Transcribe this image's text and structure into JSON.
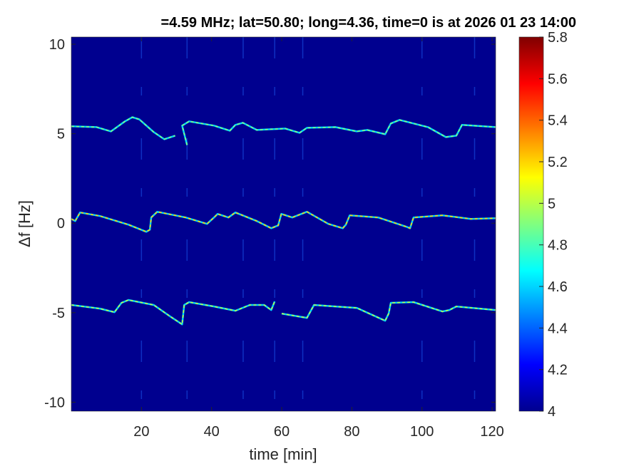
{
  "chart_data": {
    "type": "heatmap",
    "title": "=4.59 MHz;  lat=50.80; long=4.36, time=0 is at 2026 01 23 14:00",
    "xlabel": "time [min]",
    "ylabel": "Δf [Hz]",
    "xlim": [
      0,
      121
    ],
    "ylim": [
      -10.5,
      10.4
    ],
    "xticks": [
      20,
      40,
      60,
      80,
      100,
      120
    ],
    "yticks": [
      10,
      5,
      0,
      -5,
      -10
    ],
    "colormap": "jet",
    "background_color": "#00008f",
    "colorbar": {
      "range": [
        4,
        5.8
      ],
      "ticks": [
        "4",
        "4.2",
        "4.4",
        "4.6",
        "4.8",
        "5",
        "5.2",
        "5.4",
        "5.6",
        "5.8"
      ]
    },
    "vertical_impulses_time": [
      20,
      33,
      49,
      58,
      66,
      100,
      115
    ],
    "traces": [
      {
        "points": [
          [
            0,
            5.41
          ],
          [
            7.2,
            5.37
          ],
          [
            11.3,
            5.13
          ],
          [
            15.3,
            5.69
          ],
          [
            17.4,
            5.92
          ],
          [
            19.4,
            5.8
          ],
          [
            23.5,
            5.09
          ],
          [
            26.5,
            4.69
          ],
          [
            29.6,
            4.89
          ],
          null,
          [
            33,
            4.37
          ],
          [
            31.6,
            5.45
          ],
          [
            33.6,
            5.69
          ],
          [
            40.7,
            5.45
          ],
          [
            45.2,
            5.17
          ],
          [
            46.8,
            5.49
          ],
          [
            48.9,
            5.61
          ],
          [
            52.9,
            5.21
          ],
          [
            61,
            5.29
          ],
          [
            65.1,
            5.05
          ],
          [
            67.2,
            5.33
          ],
          [
            75.3,
            5.37
          ],
          [
            81.4,
            5.13
          ],
          [
            84.4,
            5.21
          ],
          [
            89.5,
            4.97
          ],
          [
            91.1,
            5.57
          ],
          [
            93.6,
            5.77
          ],
          [
            101.7,
            5.37
          ],
          [
            106.8,
            4.81
          ],
          [
            109.8,
            4.89
          ],
          [
            111.4,
            5.49
          ],
          [
            121,
            5.37
          ]
        ],
        "intensity": 4.9
      },
      {
        "points": [
          [
            0,
            0.24
          ],
          [
            1.1,
            0.12
          ],
          [
            2.5,
            0.6
          ],
          [
            8.2,
            0.4
          ],
          [
            16.3,
            -0.08
          ],
          [
            21.4,
            -0.48
          ],
          [
            22.4,
            -0.36
          ],
          [
            22.8,
            0.32
          ],
          [
            24.5,
            0.64
          ],
          [
            32.6,
            0.32
          ],
          [
            38.7,
            -0.04
          ],
          [
            40.7,
            0.32
          ],
          [
            41.7,
            0.52
          ],
          [
            44.8,
            0.32
          ],
          [
            46.8,
            0.6
          ],
          [
            52.9,
            0.12
          ],
          [
            57,
            -0.28
          ],
          [
            59,
            -0.12
          ],
          [
            59.9,
            0.52
          ],
          [
            63,
            0.32
          ],
          [
            67.2,
            0.64
          ],
          [
            73.3,
            -0.04
          ],
          [
            77.4,
            -0.28
          ],
          [
            78.3,
            -0.08
          ],
          [
            79.4,
            0.44
          ],
          [
            87.5,
            0.32
          ],
          [
            95.6,
            -0.2
          ],
          [
            96.6,
            -0.28
          ],
          [
            97.6,
            0.32
          ],
          [
            105.8,
            0.44
          ],
          [
            113.9,
            0.24
          ],
          [
            121,
            0.28
          ]
        ],
        "intensity": 5.2
      },
      {
        "points": [
          [
            0,
            -4.57
          ],
          [
            8.2,
            -4.77
          ],
          [
            12.3,
            -4.97
          ],
          [
            14.3,
            -4.45
          ],
          [
            16.3,
            -4.29
          ],
          [
            23.5,
            -4.57
          ],
          [
            28.5,
            -5.25
          ],
          [
            31.6,
            -5.65
          ],
          [
            32.2,
            -4.57
          ],
          [
            33.6,
            -4.41
          ],
          [
            40.7,
            -4.65
          ],
          [
            46.8,
            -4.89
          ],
          [
            50.9,
            -4.57
          ],
          [
            55,
            -4.57
          ],
          [
            57,
            -4.85
          ],
          [
            58,
            -4.37
          ],
          null,
          [
            60,
            -5.05
          ],
          [
            67.2,
            -5.29
          ],
          [
            69.2,
            -4.57
          ],
          [
            75.3,
            -4.65
          ],
          [
            81.4,
            -4.73
          ],
          [
            89.5,
            -5.45
          ],
          [
            90.5,
            -5.05
          ],
          [
            91.1,
            -4.45
          ],
          [
            97.6,
            -4.41
          ],
          [
            105.8,
            -4.93
          ],
          [
            107.8,
            -4.85
          ],
          [
            109.8,
            -4.65
          ],
          [
            121,
            -4.85
          ]
        ],
        "intensity": 5.0
      }
    ]
  }
}
